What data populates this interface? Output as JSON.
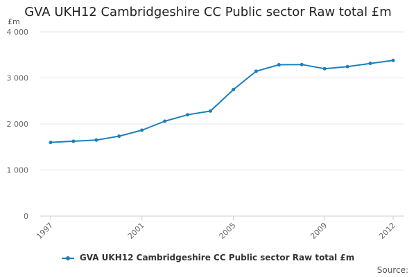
{
  "chart_data": {
    "type": "line",
    "title": "GVA UKH12 Cambridgeshire CC Public sector Raw total £m",
    "ylabel": "£m",
    "xlabel": "",
    "x": [
      1997,
      1998,
      1999,
      2000,
      2001,
      2002,
      2003,
      2004,
      2005,
      2006,
      2007,
      2008,
      2009,
      2010,
      2011,
      2012
    ],
    "x_ticks": [
      1997,
      2001,
      2005,
      2009,
      2012
    ],
    "xlim": [
      1997,
      2012
    ],
    "y_ticks": [
      0,
      1000,
      2000,
      3000,
      4000
    ],
    "y_tick_labels": [
      "0",
      "1 000",
      "2 000",
      "3 000",
      "4 000"
    ],
    "ylim": [
      0,
      4000
    ],
    "grid": true,
    "legend_position": "bottom",
    "series": [
      {
        "name": "GVA UKH12 Cambridgeshire CC Public sector Raw total £m",
        "color": "#1a7fbe",
        "values": [
          1600,
          1625,
          1650,
          1735,
          1865,
          2060,
          2200,
          2280,
          2745,
          3145,
          3285,
          3290,
          3200,
          3245,
          3315,
          3380
        ]
      }
    ]
  },
  "footer": {
    "source_label": "Source:"
  }
}
